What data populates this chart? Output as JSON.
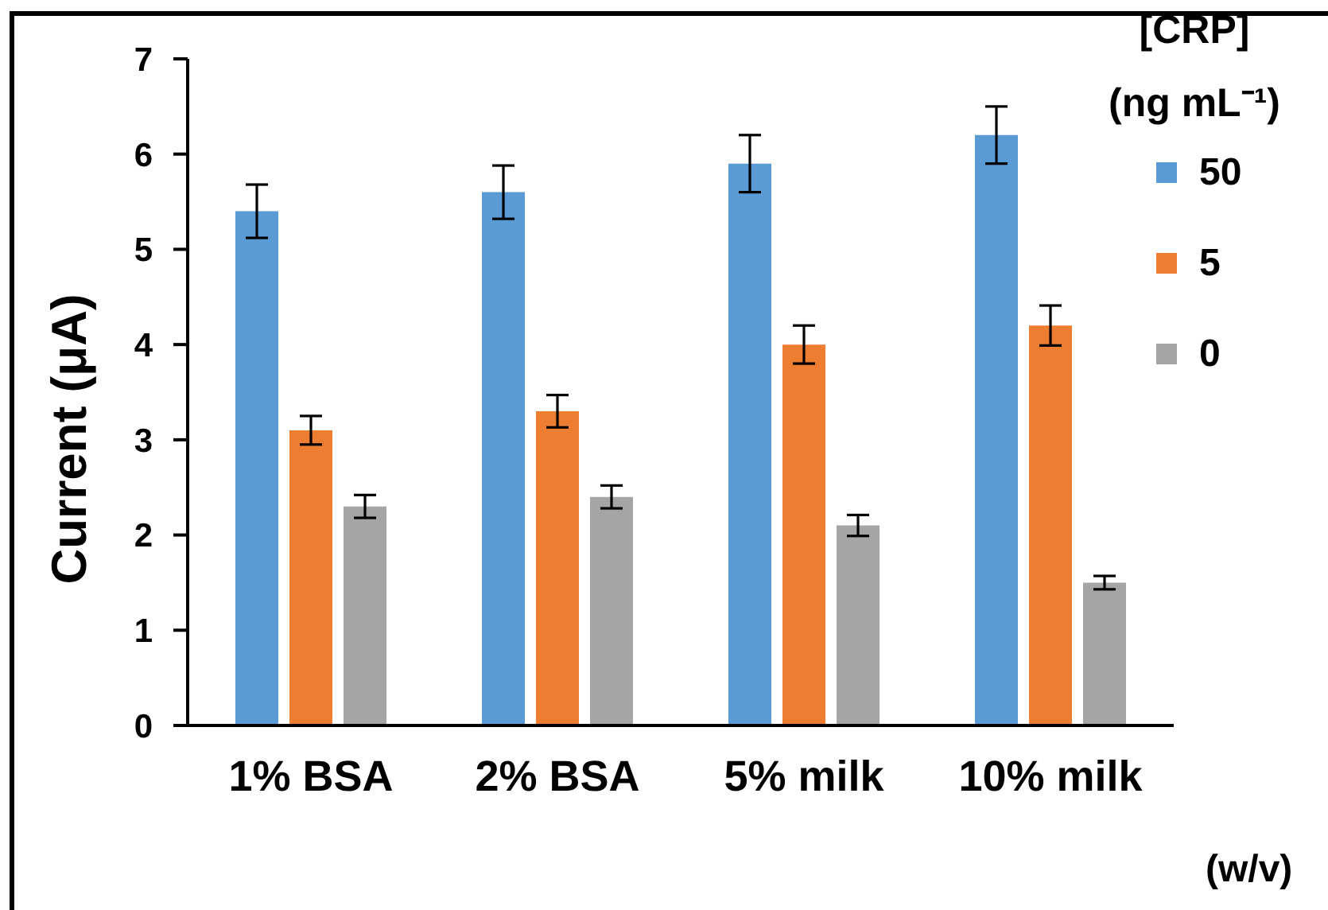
{
  "chart_data": {
    "type": "bar",
    "categories": [
      "1% BSA",
      "2% BSA",
      "5% milk",
      "10% milk"
    ],
    "xlabel": "(w/v)",
    "ylabel": "Current (μA)",
    "legend_title": "[CRP]\n(ng mL⁻¹)",
    "series": [
      {
        "name": "50",
        "color": "#5b9bd5",
        "values": [
          5.4,
          5.6,
          5.9,
          6.2
        ],
        "errors": [
          0.28,
          0.28,
          0.3,
          0.3
        ]
      },
      {
        "name": "5",
        "color": "#ed7d31",
        "values": [
          3.1,
          3.3,
          4.0,
          4.2
        ],
        "errors": [
          0.15,
          0.17,
          0.2,
          0.21
        ]
      },
      {
        "name": "0",
        "color": "#a5a5a5",
        "values": [
          2.3,
          2.4,
          2.1,
          1.5
        ],
        "errors": [
          0.12,
          0.12,
          0.11,
          0.07
        ]
      }
    ],
    "ylim": [
      0,
      7
    ],
    "yticks": [
      0,
      1,
      2,
      3,
      4,
      5,
      6,
      7
    ],
    "legend": "top right"
  }
}
